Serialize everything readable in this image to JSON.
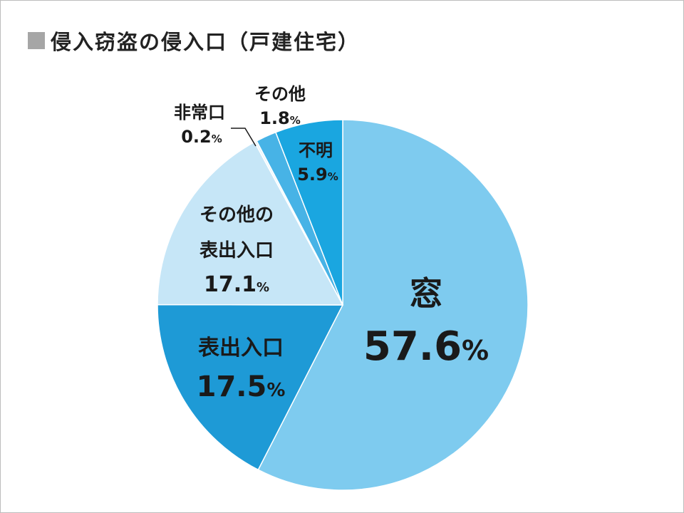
{
  "title": "侵入窃盗の侵入口（戸建住宅）",
  "colors": {
    "title_square": "#a6a6a6"
  },
  "chart_data": {
    "type": "pie",
    "title": "侵入窃盗の侵入口（戸建住宅）",
    "unit": "%",
    "start_angle_deg": 0,
    "direction": "clockwise",
    "slices": [
      {
        "name": "窓",
        "value": 57.6,
        "value_label": "57.6",
        "color": "#7ecbef"
      },
      {
        "name": "表出入口",
        "value": 17.5,
        "value_label": "17.5",
        "color": "#1e9ad6"
      },
      {
        "name": "その他の表出入口",
        "name_lines": [
          "その他の",
          "表出入口"
        ],
        "value": 17.1,
        "value_label": "17.1",
        "color": "#c6e6f7"
      },
      {
        "name": "非常口",
        "value": 0.2,
        "value_label": "0.2",
        "color": "#e9f5fb"
      },
      {
        "name": "その他",
        "value": 1.8,
        "value_label": "1.8",
        "color": "#47b3e6"
      },
      {
        "name": "不明",
        "value": 5.9,
        "value_label": "5.9",
        "color": "#1aa6e0"
      }
    ]
  }
}
